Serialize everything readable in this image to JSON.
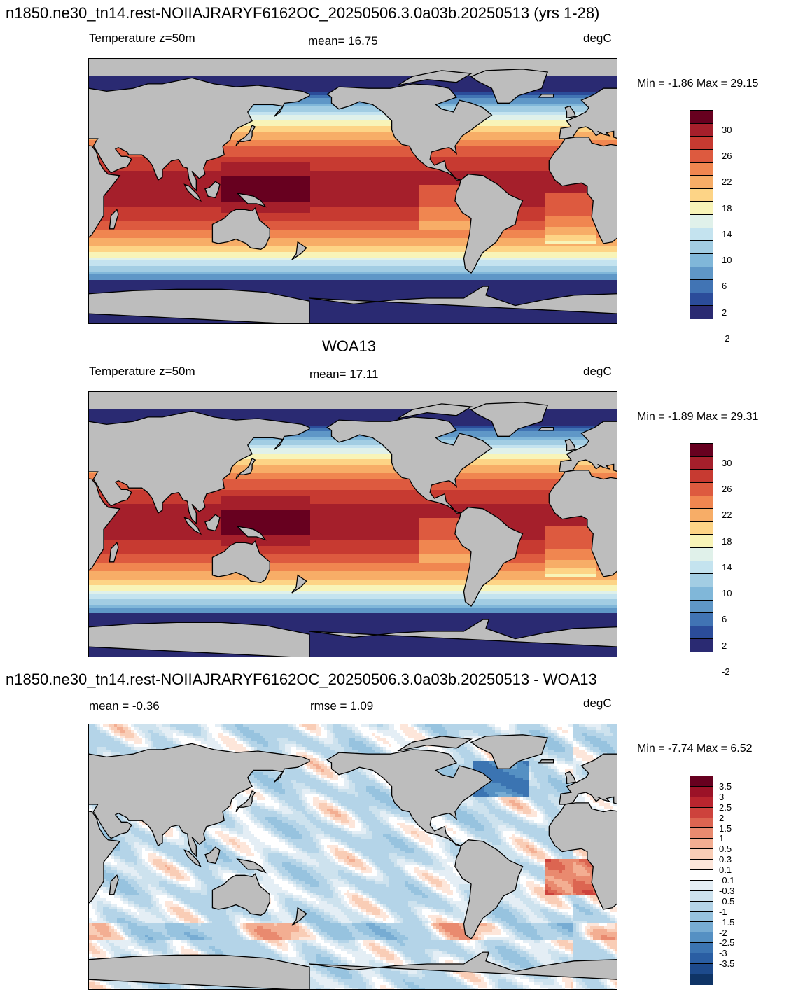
{
  "panels": [
    {
      "title": "n1850.ne30_tn14.rest-NOIIAJRARYF6162OC_20250506.3.0a03b.20250513 (yrs 1-28)",
      "field_label": "Temperature z=50m",
      "stat_label": "mean=  16.75",
      "units": "degC",
      "minmax": "Min =  -1.86 Max =  29.15",
      "field": "temperature",
      "colorbar": {
        "colors": [
          "#67001f",
          "#a51f2b",
          "#c73a31",
          "#dd5a3f",
          "#f08650",
          "#f7ad67",
          "#fdd486",
          "#f8f4b8",
          "#e0f1ea",
          "#c4e3ef",
          "#a2cde3",
          "#80b7d9",
          "#5f97c7",
          "#4174b4",
          "#2b4c9a",
          "#2a2a72"
        ],
        "labels": [
          "30",
          "26",
          "22",
          "18",
          "14",
          "10",
          "6",
          "2",
          "-2"
        ]
      }
    },
    {
      "title": "WOA13",
      "field_label": "Temperature z=50m",
      "stat_label": "mean=  17.11",
      "units": "degC",
      "minmax": "Min =  -1.89 Max =  29.31",
      "field": "temperature",
      "colorbar": {
        "colors": [
          "#67001f",
          "#a51f2b",
          "#c73a31",
          "#dd5a3f",
          "#f08650",
          "#f7ad67",
          "#fdd486",
          "#f8f4b8",
          "#e0f1ea",
          "#c4e3ef",
          "#a2cde3",
          "#80b7d9",
          "#5f97c7",
          "#4174b4",
          "#2b4c9a",
          "#2a2a72"
        ],
        "labels": [
          "30",
          "26",
          "22",
          "18",
          "14",
          "10",
          "6",
          "2",
          "-2"
        ]
      }
    },
    {
      "title": "n1850.ne30_tn14.rest-NOIIAJRARYF6162OC_20250506.3.0a03b.20250513 - WOA13",
      "field_label": "mean =  -0.36",
      "stat_label": "rmse =   1.09",
      "units": "degC",
      "minmax": "Min =  -7.74 Max =   6.52",
      "field": "difference",
      "colorbar": {
        "colors": [
          "#67001f",
          "#9b1227",
          "#b9252e",
          "#cd423c",
          "#dc6551",
          "#e98a6f",
          "#f3ae92",
          "#f9cdb6",
          "#fde6da",
          "#ffffff",
          "#e4eef5",
          "#cde2ee",
          "#b4d4e8",
          "#97c3df",
          "#77acd3",
          "#5590c3",
          "#3b74b2",
          "#2a5ea3",
          "#1d4a8c",
          "#0f3466"
        ],
        "labels": [
          "3.5",
          "3",
          "2.5",
          "2",
          "1.5",
          "1",
          "0.5",
          "0.3",
          "0.1",
          "-0.1",
          "-0.3",
          "-0.5",
          "-1",
          "-1.5",
          "-2",
          "-2.5",
          "-3",
          "-3.5"
        ]
      }
    }
  ]
}
